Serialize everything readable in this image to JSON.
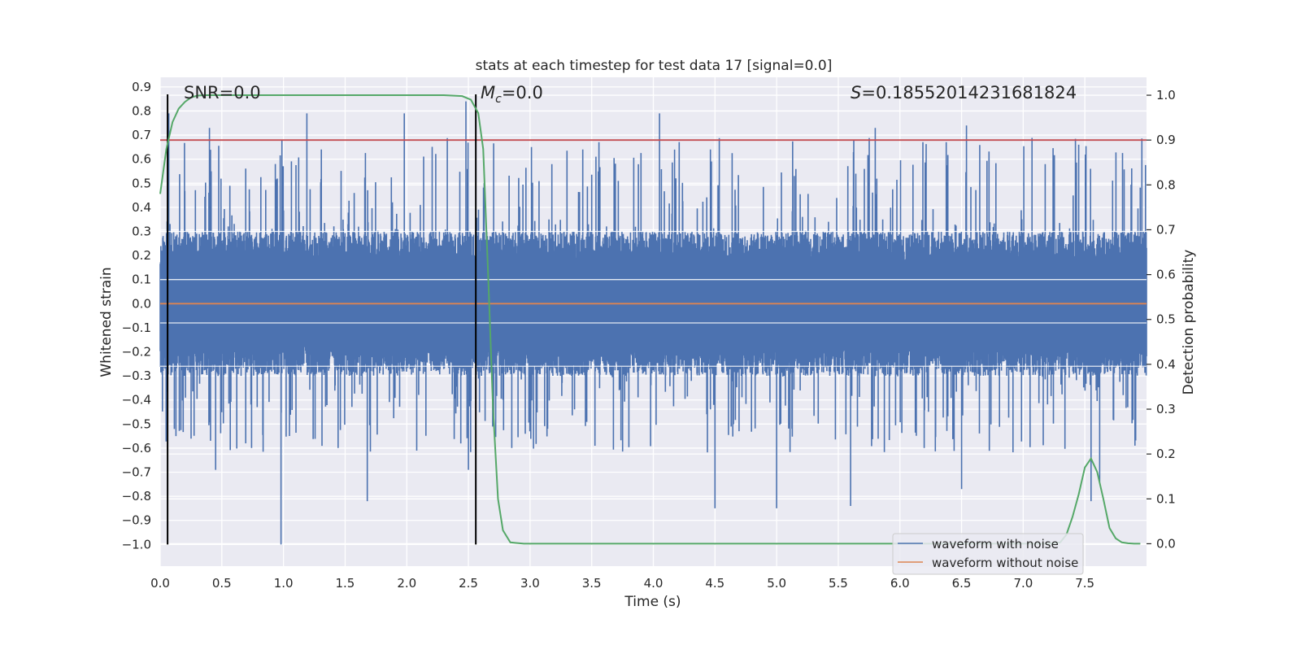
{
  "chart_data": {
    "type": "line",
    "title": "stats at each timestep for test data 17 [signal=0.0]",
    "xlabel": "Time (s)",
    "ylabel": "Whitened strain",
    "y2label": "Detection probability",
    "xlim": [
      0.0,
      8.0
    ],
    "ylim": [
      -1.09,
      0.94
    ],
    "y2lim": [
      -0.05,
      1.04
    ],
    "x_ticks": [
      "0.0",
      "0.5",
      "1.0",
      "1.5",
      "2.0",
      "2.5",
      "3.0",
      "3.5",
      "4.0",
      "4.5",
      "5.0",
      "5.5",
      "6.0",
      "6.5",
      "7.0",
      "7.5"
    ],
    "y_ticks": [
      "0.9",
      "0.8",
      "0.7",
      "0.6",
      "0.5",
      "0.4",
      "0.3",
      "0.2",
      "0.1",
      "0.0",
      "−0.1",
      "−0.2",
      "−0.3",
      "−0.4",
      "−0.5",
      "−0.6",
      "−0.7",
      "−0.8",
      "−0.9",
      "−1.0"
    ],
    "y2_ticks": [
      "1.0",
      "0.9",
      "0.8",
      "0.7",
      "0.6",
      "0.5",
      "0.4",
      "0.3",
      "0.2",
      "0.1",
      "0.0"
    ],
    "grid": true,
    "legend_position": "lower-right",
    "annotations": {
      "snr": "SNR=0.0",
      "mc": "M_c=0.0",
      "s": "S=0.18552014231681824"
    },
    "vertical_markers": [
      0.06,
      2.56
    ],
    "threshold": {
      "axis": "right",
      "value": 0.9,
      "color": "#c44e52"
    },
    "series": [
      {
        "name": "waveform with noise",
        "axis": "left",
        "color": "#4c72b0",
        "kind": "noise",
        "typical_envelope": [
          -0.3,
          0.3
        ],
        "extremes": {
          "min": -1.0,
          "max": 0.84
        },
        "peaks_max": [
          [
            0.4,
            0.73
          ],
          [
            0.07,
            0.79
          ],
          [
            1.19,
            0.79
          ],
          [
            1.98,
            0.79
          ],
          [
            2.48,
            0.84
          ],
          [
            4.05,
            0.79
          ],
          [
            5.8,
            0.73
          ],
          [
            6.54,
            0.74
          ],
          [
            7.45,
            0.66
          ]
        ],
        "peaks_min": [
          [
            0.98,
            -1.0
          ],
          [
            0.45,
            -0.69
          ],
          [
            1.68,
            -0.82
          ],
          [
            2.5,
            -0.69
          ],
          [
            4.5,
            -0.85
          ],
          [
            5.0,
            -0.85
          ],
          [
            5.6,
            -0.84
          ],
          [
            6.5,
            -0.77
          ],
          [
            7.55,
            -0.82
          ],
          [
            7.62,
            -0.74
          ]
        ]
      },
      {
        "name": "waveform without noise",
        "axis": "left",
        "color": "#dd8452",
        "x": [
          0.0,
          8.0
        ],
        "y": [
          0.0,
          0.0
        ]
      },
      {
        "name": "detection probability",
        "axis": "right",
        "color": "#55a868",
        "x": [
          0.0,
          0.05,
          0.1,
          0.15,
          0.2,
          0.25,
          0.3,
          0.35,
          0.4,
          0.5,
          1.0,
          1.5,
          2.0,
          2.3,
          2.45,
          2.52,
          2.58,
          2.62,
          2.66,
          2.7,
          2.74,
          2.78,
          2.84,
          2.95,
          3.5,
          7.0,
          7.2,
          7.3,
          7.35,
          7.4,
          7.45,
          7.5,
          7.55,
          7.6,
          7.65,
          7.7,
          7.75,
          7.8,
          7.85,
          7.9,
          7.95
        ],
        "y": [
          0.78,
          0.88,
          0.94,
          0.97,
          0.985,
          0.995,
          0.999,
          1.0,
          1.0,
          1.0,
          1.0,
          1.0,
          1.0,
          1.0,
          0.998,
          0.99,
          0.96,
          0.88,
          0.6,
          0.3,
          0.1,
          0.03,
          0.003,
          0.0,
          0.0,
          0.0,
          0.0,
          0.003,
          0.02,
          0.06,
          0.11,
          0.17,
          0.19,
          0.16,
          0.1,
          0.035,
          0.012,
          0.003,
          0.001,
          0.0,
          0.0
        ]
      }
    ]
  }
}
